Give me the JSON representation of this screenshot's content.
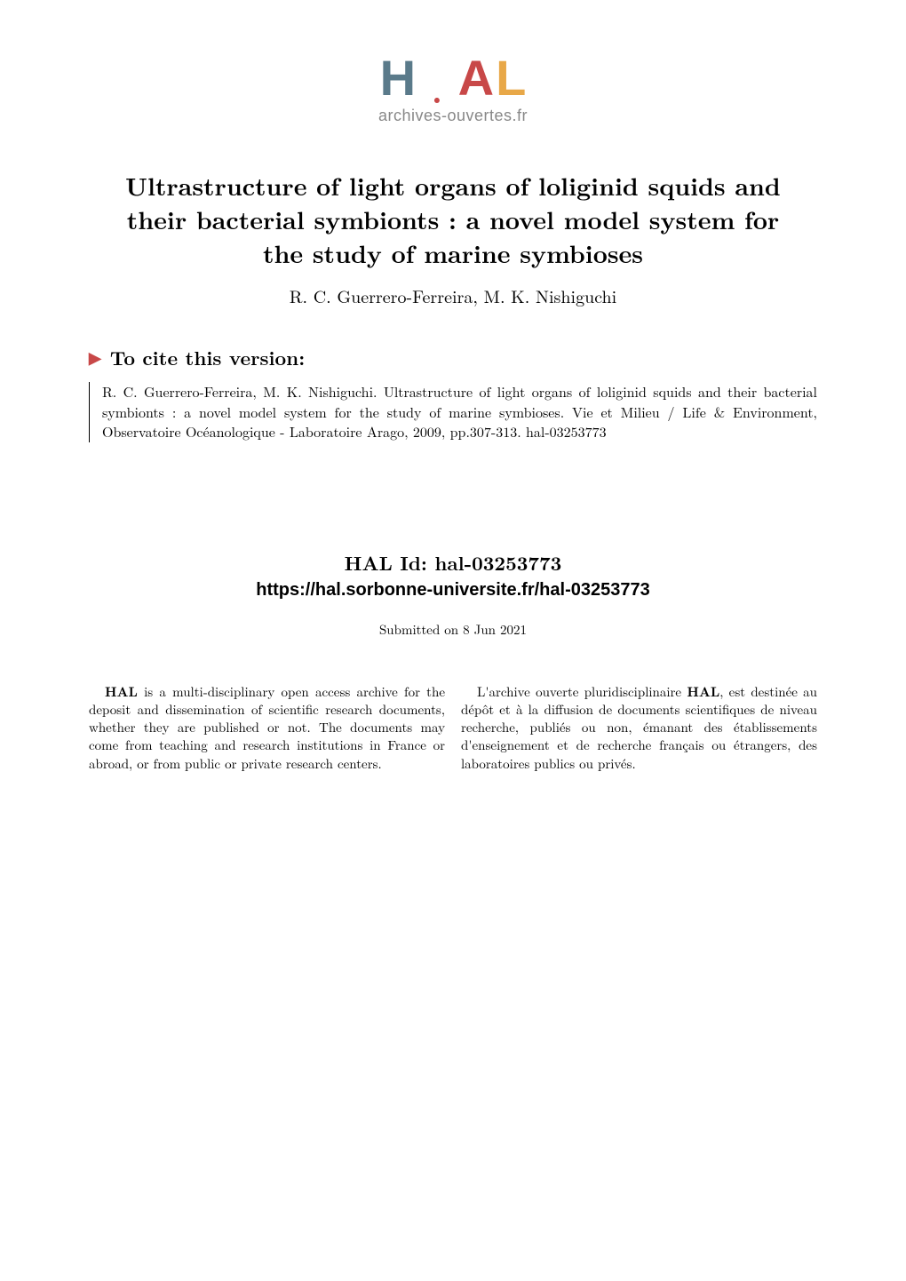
{
  "logo": {
    "letters": [
      "H",
      "A",
      "L"
    ],
    "letter_colors": [
      "#5a7a8a",
      "#c84848",
      "#e8a848"
    ],
    "subtitle": "archives-ouvertes.fr",
    "subtitle_color": "#888888"
  },
  "title": "Ultrastructure of light organs of loliginid squids and their bacterial symbionts : a novel model system for the study of marine symbioses",
  "authors": "R. C. Guerrero-Ferreira, M. K. Nishiguchi",
  "cite": {
    "arrow_color": "#c84848",
    "header": "To cite this version:",
    "body": "R. C. Guerrero-Ferreira, M. K. Nishiguchi. Ultrastructure of light organs of loliginid squids and their bacterial symbionts : a novel model system for the study of marine symbioses. Vie et Milieu / Life & Environment, Observatoire Océanologique - Laboratoire Arago, 2009, pp.307-313. ",
    "hal_ref": "hal-03253773"
  },
  "halid": {
    "label": "HAL Id: hal-03253773",
    "url": "https://hal.sorbonne-universite.fr/hal-03253773"
  },
  "submitted": "Submitted on 8 Jun 2021",
  "footer": {
    "left_bold": "HAL",
    "left_rest": " is a multi-disciplinary open access archive for the deposit and dissemination of scientific research documents, whether they are published or not. The documents may come from teaching and research institutions in France or abroad, or from public or private research centers.",
    "right_start": "L'archive ouverte pluridisciplinaire ",
    "right_bold": "HAL",
    "right_rest": ", est destinée au dépôt et à la diffusion de documents scientifiques de niveau recherche, publiés ou non, émanant des établissements d'enseignement et de recherche français ou étrangers, des laboratoires publics ou privés."
  },
  "style": {
    "page_bg": "#ffffff",
    "text_color": "#000000",
    "title_fontsize": 28,
    "authors_fontsize": 20,
    "cite_header_fontsize": 22,
    "cite_body_fontsize": 16,
    "halid_fontsize": 22,
    "url_fontsize": 20,
    "submitted_fontsize": 15,
    "footer_fontsize": 15,
    "font_family_serif": "Latin Modern Roman",
    "font_family_sans": "Arial"
  }
}
